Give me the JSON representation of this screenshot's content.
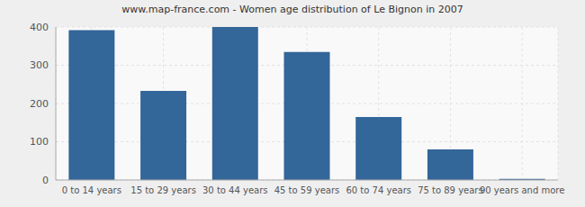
{
  "chart_data": {
    "type": "bar",
    "title": "www.map-france.com - Women age distribution of Le Bignon in 2007",
    "categories": [
      "0 to 14 years",
      "15 to 29 years",
      "30 to 44 years",
      "45 to 59 years",
      "60 to 74 years",
      "75 to 89 years",
      "90 years and more"
    ],
    "values": [
      392,
      233,
      400,
      335,
      165,
      80,
      3
    ],
    "color": "#336699",
    "ylim": [
      0,
      400
    ],
    "yticks": [
      0,
      100,
      200,
      300,
      400
    ],
    "grid": true
  }
}
